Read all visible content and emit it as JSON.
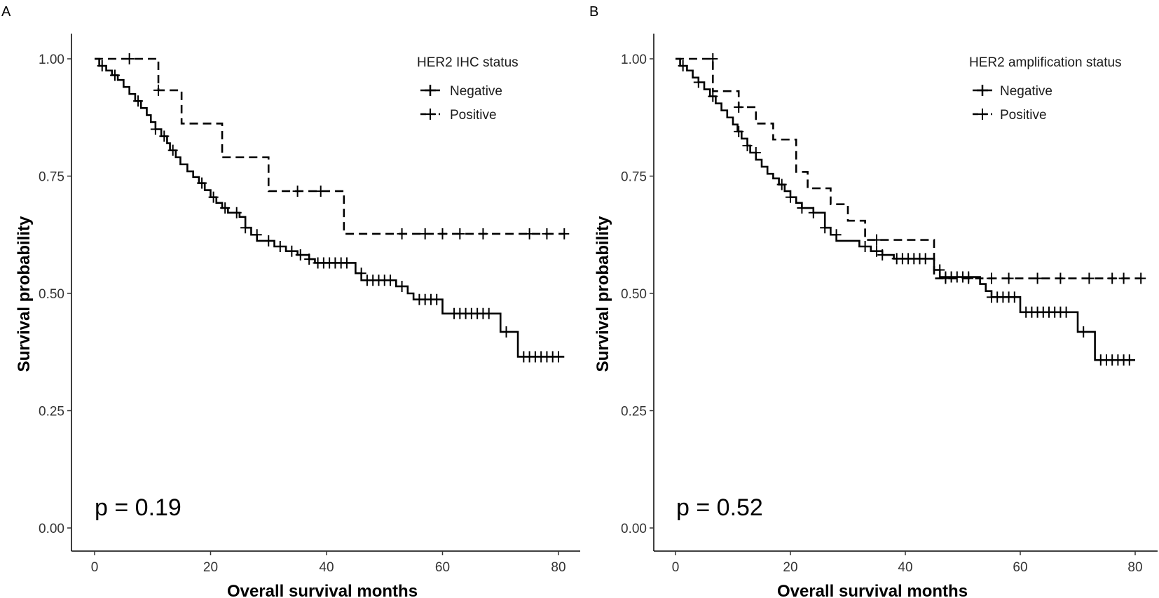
{
  "chart_data": [
    {
      "type": "line",
      "subtype": "kaplan-meier",
      "panel_label": "A",
      "xlabel": "Overall survival months",
      "ylabel": "Survival probability",
      "xlim": [
        -5,
        83
      ],
      "ylim": [
        -0.05,
        1.05
      ],
      "x_ticks": [
        0,
        20,
        40,
        60,
        80
      ],
      "x_tick_labels": [
        "0",
        "20",
        "40",
        "60",
        "80"
      ],
      "y_ticks": [
        0,
        0.25,
        0.5,
        0.75,
        1.0
      ],
      "y_tick_labels": [
        "0.00",
        "0.25",
        "0.50",
        "0.75",
        "1.00"
      ],
      "legend_title": "HER2 IHC status",
      "annotation": "p = 0.19",
      "series": [
        {
          "name": "Negative",
          "style": "solid",
          "steps": [
            [
              0,
              1.0
            ],
            [
              0.8,
              0.985
            ],
            [
              2,
              0.975
            ],
            [
              3,
              0.965
            ],
            [
              4,
              0.955
            ],
            [
              5,
              0.94
            ],
            [
              6,
              0.925
            ],
            [
              7,
              0.91
            ],
            [
              8,
              0.895
            ],
            [
              9,
              0.88
            ],
            [
              9.7,
              0.865
            ],
            [
              10.5,
              0.85
            ],
            [
              11.5,
              0.835
            ],
            [
              12.5,
              0.82
            ],
            [
              13,
              0.805
            ],
            [
              14,
              0.79
            ],
            [
              14.8,
              0.775
            ],
            [
              16,
              0.76
            ],
            [
              17,
              0.748
            ],
            [
              18,
              0.735
            ],
            [
              19,
              0.72
            ],
            [
              20,
              0.705
            ],
            [
              21,
              0.693
            ],
            [
              22,
              0.682
            ],
            [
              23,
              0.672
            ],
            [
              25,
              0.663
            ],
            [
              26,
              0.64
            ],
            [
              27,
              0.625
            ],
            [
              28,
              0.612
            ],
            [
              31,
              0.6
            ],
            [
              33,
              0.59
            ],
            [
              35,
              0.582
            ],
            [
              37,
              0.573
            ],
            [
              38,
              0.565
            ],
            [
              45,
              0.543
            ],
            [
              46,
              0.528
            ],
            [
              52,
              0.515
            ],
            [
              54,
              0.5
            ],
            [
              55,
              0.487
            ],
            [
              60,
              0.457
            ],
            [
              70,
              0.418
            ],
            [
              73,
              0.365
            ]
          ],
          "end": 81,
          "censor": [
            [
              1.3,
              0.985
            ],
            [
              3.5,
              0.965
            ],
            [
              7.5,
              0.91
            ],
            [
              10.5,
              0.85
            ],
            [
              12,
              0.835
            ],
            [
              13.5,
              0.805
            ],
            [
              18.5,
              0.735
            ],
            [
              20.5,
              0.705
            ],
            [
              22.5,
              0.682
            ],
            [
              24.5,
              0.672
            ],
            [
              26,
              0.64
            ],
            [
              28,
              0.625
            ],
            [
              30,
              0.612
            ],
            [
              32,
              0.6
            ],
            [
              34,
              0.59
            ],
            [
              35.5,
              0.582
            ],
            [
              37,
              0.573
            ],
            [
              38.5,
              0.565
            ],
            [
              39.5,
              0.565
            ],
            [
              40.5,
              0.565
            ],
            [
              41.5,
              0.565
            ],
            [
              42.5,
              0.565
            ],
            [
              43.5,
              0.565
            ],
            [
              46,
              0.543
            ],
            [
              47,
              0.528
            ],
            [
              48,
              0.528
            ],
            [
              49,
              0.528
            ],
            [
              50,
              0.528
            ],
            [
              51,
              0.528
            ],
            [
              53,
              0.515
            ],
            [
              56,
              0.487
            ],
            [
              57,
              0.487
            ],
            [
              58,
              0.487
            ],
            [
              59,
              0.487
            ],
            [
              62,
              0.457
            ],
            [
              63,
              0.457
            ],
            [
              64,
              0.457
            ],
            [
              65,
              0.457
            ],
            [
              66,
              0.457
            ],
            [
              67,
              0.457
            ],
            [
              68,
              0.457
            ],
            [
              71,
              0.418
            ],
            [
              74,
              0.365
            ],
            [
              75,
              0.365
            ],
            [
              76,
              0.365
            ],
            [
              77,
              0.365
            ],
            [
              78,
              0.365
            ],
            [
              79,
              0.365
            ],
            [
              80,
              0.365
            ]
          ]
        },
        {
          "name": "Positive",
          "style": "dashed",
          "steps": [
            [
              0,
              1.0
            ],
            [
              11,
              0.933
            ],
            [
              15,
              0.862
            ],
            [
              22,
              0.79
            ],
            [
              30,
              0.718
            ],
            [
              43,
              0.627
            ]
          ],
          "end": 81,
          "censor": [
            [
              6,
              1.0
            ],
            [
              11,
              0.933
            ],
            [
              35,
              0.718
            ],
            [
              39,
              0.718
            ],
            [
              53,
              0.627
            ],
            [
              57,
              0.627
            ],
            [
              60,
              0.627
            ],
            [
              63,
              0.627
            ],
            [
              67,
              0.627
            ],
            [
              75,
              0.627
            ],
            [
              78,
              0.627
            ],
            [
              81,
              0.627
            ]
          ]
        }
      ]
    },
    {
      "type": "line",
      "subtype": "kaplan-meier",
      "panel_label": "B",
      "xlabel": "Overall survival months",
      "ylabel": "Survival probability",
      "xlim": [
        -5,
        83
      ],
      "ylim": [
        -0.05,
        1.05
      ],
      "x_ticks": [
        0,
        20,
        40,
        60,
        80
      ],
      "x_tick_labels": [
        "0",
        "20",
        "40",
        "60",
        "80"
      ],
      "y_ticks": [
        0,
        0.25,
        0.5,
        0.75,
        1.0
      ],
      "y_tick_labels": [
        "0.00",
        "0.25",
        "0.50",
        "0.75",
        "1.00"
      ],
      "legend_title": "HER2 amplification status",
      "annotation": "p = 0.52",
      "series": [
        {
          "name": "Negative",
          "style": "solid",
          "steps": [
            [
              0,
              1.0
            ],
            [
              0.8,
              0.985
            ],
            [
              2,
              0.975
            ],
            [
              3,
              0.96
            ],
            [
              4,
              0.95
            ],
            [
              5,
              0.935
            ],
            [
              6,
              0.92
            ],
            [
              7,
              0.905
            ],
            [
              8,
              0.89
            ],
            [
              9,
              0.875
            ],
            [
              10,
              0.86
            ],
            [
              10.8,
              0.845
            ],
            [
              11.5,
              0.83
            ],
            [
              12.5,
              0.815
            ],
            [
              13,
              0.8
            ],
            [
              14,
              0.785
            ],
            [
              15,
              0.77
            ],
            [
              16,
              0.755
            ],
            [
              17,
              0.745
            ],
            [
              18,
              0.732
            ],
            [
              19,
              0.718
            ],
            [
              20,
              0.705
            ],
            [
              21,
              0.693
            ],
            [
              22,
              0.682
            ],
            [
              24,
              0.672
            ],
            [
              26,
              0.64
            ],
            [
              27,
              0.625
            ],
            [
              28,
              0.612
            ],
            [
              32,
              0.6
            ],
            [
              34,
              0.59
            ],
            [
              36,
              0.582
            ],
            [
              38,
              0.574
            ],
            [
              45,
              0.55
            ],
            [
              46,
              0.535
            ],
            [
              53,
              0.52
            ],
            [
              54,
              0.505
            ],
            [
              55,
              0.492
            ],
            [
              60,
              0.46
            ],
            [
              70,
              0.418
            ],
            [
              73,
              0.358
            ]
          ],
          "end": 80,
          "censor": [
            [
              1.3,
              0.985
            ],
            [
              4,
              0.95
            ],
            [
              6.5,
              0.92
            ],
            [
              11,
              0.845
            ],
            [
              12.5,
              0.815
            ],
            [
              14,
              0.8
            ],
            [
              18.5,
              0.732
            ],
            [
              20,
              0.705
            ],
            [
              22,
              0.682
            ],
            [
              24,
              0.672
            ],
            [
              26,
              0.64
            ],
            [
              28,
              0.625
            ],
            [
              33,
              0.6
            ],
            [
              35,
              0.59
            ],
            [
              36,
              0.582
            ],
            [
              38.5,
              0.574
            ],
            [
              39.5,
              0.574
            ],
            [
              40.5,
              0.574
            ],
            [
              41.5,
              0.574
            ],
            [
              42.5,
              0.574
            ],
            [
              43.5,
              0.574
            ],
            [
              46,
              0.55
            ],
            [
              47,
              0.535
            ],
            [
              48,
              0.535
            ],
            [
              49,
              0.535
            ],
            [
              50,
              0.535
            ],
            [
              51,
              0.535
            ],
            [
              55,
              0.492
            ],
            [
              56,
              0.492
            ],
            [
              57,
              0.492
            ],
            [
              58,
              0.492
            ],
            [
              59,
              0.492
            ],
            [
              61,
              0.46
            ],
            [
              62,
              0.46
            ],
            [
              63,
              0.46
            ],
            [
              64,
              0.46
            ],
            [
              65,
              0.46
            ],
            [
              66,
              0.46
            ],
            [
              67,
              0.46
            ],
            [
              68,
              0.46
            ],
            [
              71,
              0.418
            ],
            [
              74,
              0.358
            ],
            [
              75,
              0.358
            ],
            [
              76,
              0.358
            ],
            [
              77,
              0.358
            ],
            [
              78,
              0.358
            ],
            [
              79,
              0.358
            ]
          ]
        },
        {
          "name": "Positive",
          "style": "dashed",
          "steps": [
            [
              0,
              1.0
            ],
            [
              6.5,
              0.931
            ],
            [
              11,
              0.897
            ],
            [
              14,
              0.862
            ],
            [
              17,
              0.828
            ],
            [
              21,
              0.759
            ],
            [
              23,
              0.724
            ],
            [
              27,
              0.69
            ],
            [
              30,
              0.655
            ],
            [
              33,
              0.614
            ],
            [
              45,
              0.532
            ]
          ],
          "end": 81,
          "censor": [
            [
              6.5,
              1.0
            ],
            [
              11,
              0.897
            ],
            [
              35,
              0.614
            ],
            [
              47,
              0.532
            ],
            [
              51,
              0.532
            ],
            [
              55,
              0.532
            ],
            [
              58,
              0.532
            ],
            [
              63,
              0.532
            ],
            [
              67,
              0.532
            ],
            [
              72,
              0.532
            ],
            [
              76,
              0.532
            ],
            [
              78,
              0.532
            ],
            [
              81,
              0.532
            ]
          ]
        }
      ]
    }
  ]
}
